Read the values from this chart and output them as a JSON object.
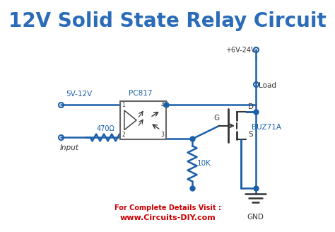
{
  "title": "12V Solid State Relay Circuit",
  "title_color": "#2b6cb8",
  "title_fontsize": 20,
  "circuit_color": "#1a5fa8",
  "label_color": "#1a5fa8",
  "dark_color": "#333333",
  "footer_text1": "For Complete Details Visit :",
  "footer_text2": "www.Circuits-DIY.com",
  "footer_color": "#cc0000",
  "label_5v12v": "5V-12V",
  "label_input": "Input",
  "label_470": "470Ω",
  "label_pc817": "PC817",
  "label_10k": "10K",
  "label_buz71a": "BUZ71A",
  "label_6v24v": "+6V-24V",
  "label_load": "Load",
  "label_gnd": "GND",
  "label_g": "G",
  "label_d": "D",
  "label_s": "S",
  "label_1": "1",
  "label_2": "2",
  "label_3": "3",
  "label_4": "4"
}
